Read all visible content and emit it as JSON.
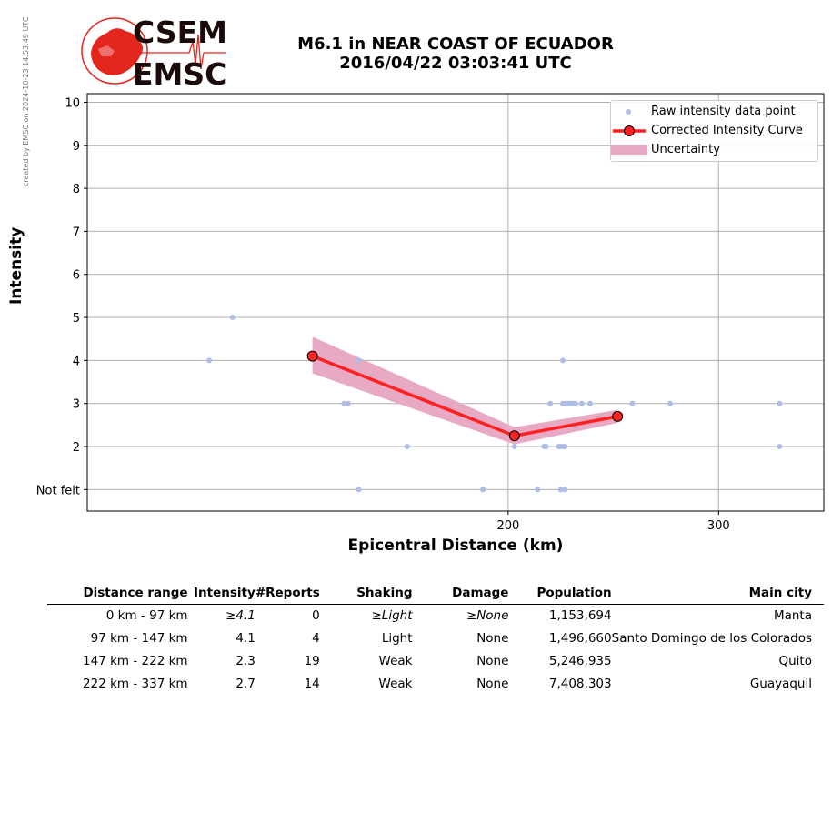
{
  "credit": "created by EMSC on 2024-10-23 14:53:49 UTC",
  "logo": {
    "line1": "CSEM",
    "line2": "EMSC",
    "color": "#e3261e"
  },
  "title": {
    "line1": "M6.1 in NEAR COAST OF ECUADOR",
    "line2": "2016/04/22 03:03:41 UTC"
  },
  "chart_data": {
    "type": "scatter",
    "xlabel": "Epicentral Distance (km)",
    "ylabel": "Intensity",
    "xlim": [
      0,
      350
    ],
    "ylim": [
      0.5,
      10.2
    ],
    "xticks": [
      200,
      300
    ],
    "yticks": [
      {
        "value": 1,
        "label": "Not felt"
      },
      {
        "value": 2,
        "label": "2"
      },
      {
        "value": 3,
        "label": "3"
      },
      {
        "value": 4,
        "label": "4"
      },
      {
        "value": 5,
        "label": "5"
      },
      {
        "value": 6,
        "label": "6"
      },
      {
        "value": 7,
        "label": "7"
      },
      {
        "value": 8,
        "label": "8"
      },
      {
        "value": 9,
        "label": "9"
      },
      {
        "value": 10,
        "label": "10"
      }
    ],
    "grid": true,
    "legend_position": "top-right",
    "series": [
      {
        "name": "Raw intensity data point",
        "color": "#aebde8",
        "points": [
          [
            58,
            4
          ],
          [
            69,
            5
          ],
          [
            122,
            3
          ],
          [
            124,
            3
          ],
          [
            129,
            4
          ],
          [
            129,
            1
          ],
          [
            152,
            2
          ],
          [
            188,
            1
          ],
          [
            203,
            2
          ],
          [
            214,
            1
          ],
          [
            217,
            2
          ],
          [
            218,
            2
          ],
          [
            220,
            3
          ],
          [
            224,
            2
          ],
          [
            225,
            2
          ],
          [
            225,
            1
          ],
          [
            226,
            4
          ],
          [
            226,
            3
          ],
          [
            226,
            2
          ],
          [
            227,
            3
          ],
          [
            227,
            2
          ],
          [
            227,
            1
          ],
          [
            228,
            3
          ],
          [
            229,
            3
          ],
          [
            230,
            3
          ],
          [
            231,
            3
          ],
          [
            232,
            3
          ],
          [
            235,
            3
          ],
          [
            239,
            3
          ],
          [
            259,
            3
          ],
          [
            277,
            3
          ],
          [
            329,
            3
          ],
          [
            329,
            2
          ]
        ]
      },
      {
        "name": "Corrected Intensity Curve",
        "color": "#ff2020",
        "points": [
          [
            107,
            4.1
          ],
          [
            203,
            2.25
          ],
          [
            252,
            2.7
          ]
        ]
      },
      {
        "name": "Uncertainty",
        "color": "#e8a9c4",
        "upper": [
          [
            107,
            4.55
          ],
          [
            203,
            2.45
          ],
          [
            252,
            2.85
          ]
        ],
        "lower": [
          [
            107,
            3.7
          ],
          [
            203,
            2.05
          ],
          [
            252,
            2.55
          ]
        ]
      }
    ]
  },
  "table": {
    "headers": [
      "Distance range",
      "Intensity",
      "#Reports",
      "Shaking",
      "Damage",
      "Population",
      "Main city"
    ],
    "rows": [
      {
        "range": "0 km -   97 km",
        "intensity": "≥4.1",
        "reports": "0",
        "shaking": "≥Light",
        "damage": "≥None",
        "population": "1,153,694",
        "city": "Manta",
        "italic": true
      },
      {
        "range": "97 km -  147 km",
        "intensity": "4.1",
        "reports": "4",
        "shaking": "Light",
        "damage": "None",
        "population": "1,496,660",
        "city": "Santo Domingo de los Colorados",
        "italic": false
      },
      {
        "range": "147 km -  222 km",
        "intensity": "2.3",
        "reports": "19",
        "shaking": "Weak",
        "damage": "None",
        "population": "5,246,935",
        "city": "Quito",
        "italic": false
      },
      {
        "range": "222 km -  337 km",
        "intensity": "2.7",
        "reports": "14",
        "shaking": "Weak",
        "damage": "None",
        "population": "7,408,303",
        "city": "Guayaquil",
        "italic": false
      }
    ]
  }
}
